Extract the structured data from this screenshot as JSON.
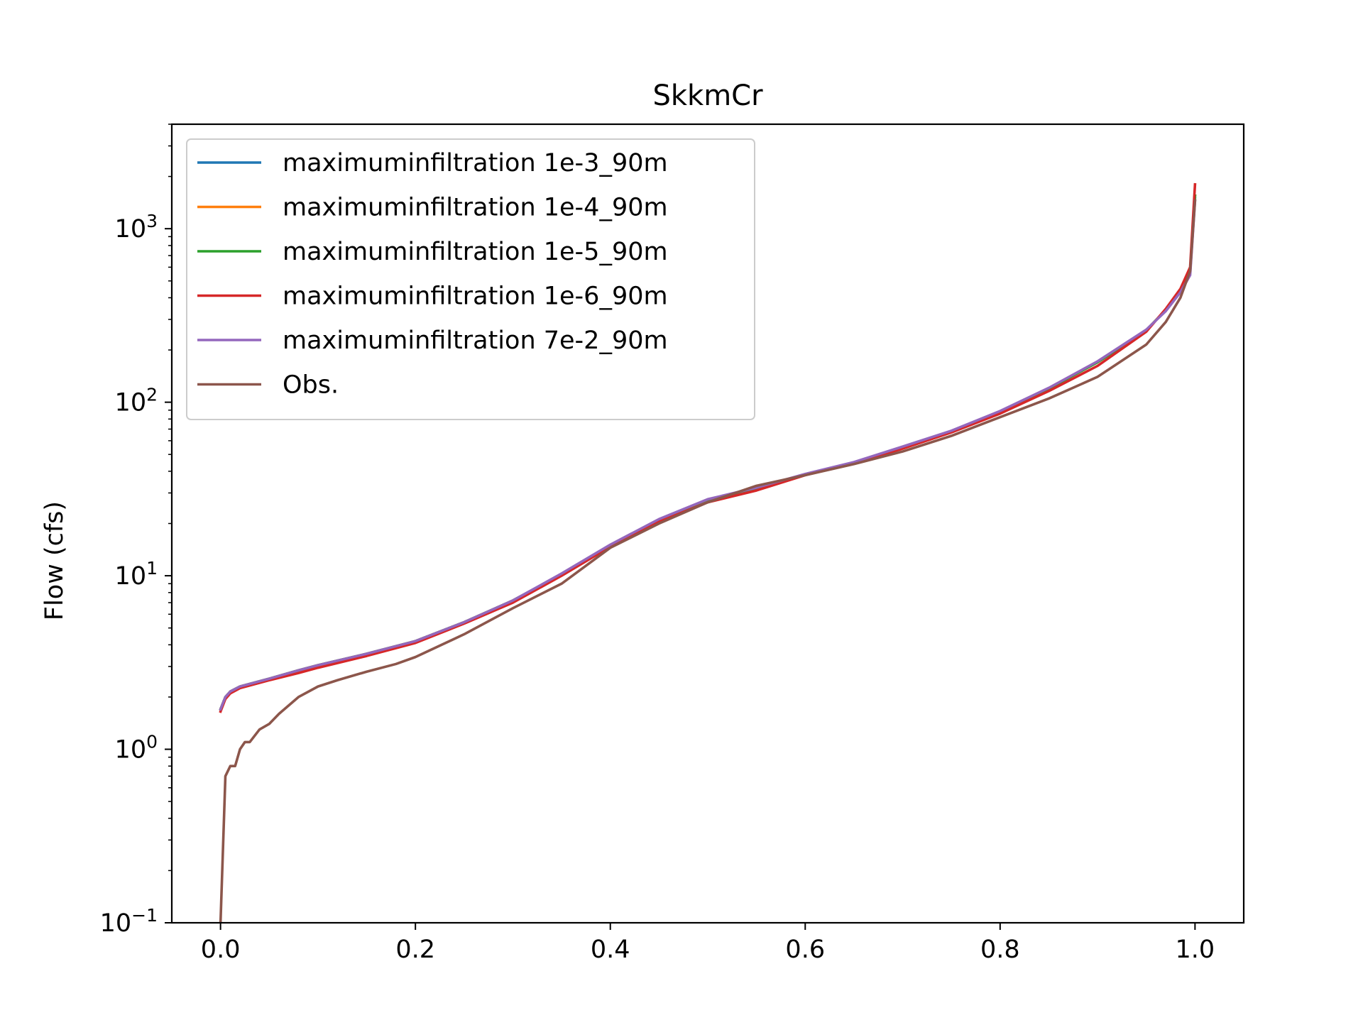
{
  "chart_data": {
    "type": "line",
    "title": "SkkmCr",
    "xlabel": "",
    "ylabel": "Flow (cfs)",
    "xlim": [
      -0.05,
      1.05
    ],
    "ylim": [
      0.1,
      4000
    ],
    "yscale": "log",
    "grid": false,
    "legend_position": "upper-left",
    "x_ticks": [
      {
        "value": 0.0,
        "label": "0.0"
      },
      {
        "value": 0.2,
        "label": "0.2"
      },
      {
        "value": 0.4,
        "label": "0.4"
      },
      {
        "value": 0.6,
        "label": "0.6"
      },
      {
        "value": 0.8,
        "label": "0.8"
      },
      {
        "value": 1.0,
        "label": "1.0"
      }
    ],
    "y_ticks": [
      {
        "value": 0.1,
        "base": "10",
        "exp": "−1"
      },
      {
        "value": 1,
        "base": "10",
        "exp": "0"
      },
      {
        "value": 10,
        "base": "10",
        "exp": "1"
      },
      {
        "value": 100,
        "base": "10",
        "exp": "2"
      },
      {
        "value": 1000,
        "base": "10",
        "exp": "3"
      }
    ],
    "series": [
      {
        "name": "maximuminfiltration 1e-3_90m",
        "color": "#1f77b4",
        "x": [
          0.0,
          0.005,
          0.01,
          0.02,
          0.05,
          0.08,
          0.1,
          0.15,
          0.2,
          0.25,
          0.3,
          0.35,
          0.4,
          0.45,
          0.5,
          0.55,
          0.6,
          0.65,
          0.7,
          0.75,
          0.8,
          0.85,
          0.9,
          0.95,
          0.97,
          0.985,
          0.995,
          1.0
        ],
        "y": [
          1.7,
          2.0,
          2.15,
          2.3,
          2.55,
          2.85,
          3.05,
          3.55,
          4.2,
          5.4,
          7.2,
          10.2,
          15.0,
          21.0,
          27.5,
          32.0,
          38.5,
          45.0,
          55.0,
          68.0,
          88.0,
          120.0,
          170.0,
          260.0,
          340.0,
          440.0,
          560.0,
          1500.0
        ]
      },
      {
        "name": "maximuminfiltration 1e-4_90m",
        "color": "#ff7f0e",
        "x": [
          0.0,
          0.005,
          0.01,
          0.02,
          0.05,
          0.08,
          0.1,
          0.15,
          0.2,
          0.25,
          0.3,
          0.35,
          0.4,
          0.45,
          0.5,
          0.55,
          0.6,
          0.65,
          0.7,
          0.75,
          0.8,
          0.85,
          0.9,
          0.95,
          0.97,
          0.985,
          0.995,
          1.0
        ],
        "y": [
          1.7,
          2.0,
          2.15,
          2.3,
          2.55,
          2.85,
          3.05,
          3.55,
          4.2,
          5.4,
          7.2,
          10.2,
          15.0,
          21.0,
          27.5,
          32.0,
          38.5,
          45.0,
          55.0,
          68.0,
          88.0,
          120.0,
          170.0,
          260.0,
          340.0,
          440.0,
          570.0,
          1550.0
        ]
      },
      {
        "name": "maximuminfiltration 1e-5_90m",
        "color": "#2ca02c",
        "x": [
          0.0,
          0.005,
          0.01,
          0.02,
          0.05,
          0.08,
          0.1,
          0.15,
          0.2,
          0.25,
          0.3,
          0.35,
          0.4,
          0.45,
          0.5,
          0.55,
          0.6,
          0.65,
          0.7,
          0.75,
          0.8,
          0.85,
          0.9,
          0.95,
          0.97,
          0.985,
          0.995,
          1.0
        ],
        "y": [
          1.7,
          2.0,
          2.15,
          2.3,
          2.55,
          2.85,
          3.05,
          3.55,
          4.2,
          5.4,
          7.2,
          10.2,
          15.0,
          21.0,
          27.5,
          32.0,
          38.5,
          45.0,
          55.0,
          68.0,
          88.0,
          120.0,
          170.0,
          260.0,
          340.0,
          440.0,
          570.0,
          1550.0
        ]
      },
      {
        "name": "maximuminfiltration 1e-6_90m",
        "color": "#d62728",
        "x": [
          0.0,
          0.005,
          0.01,
          0.02,
          0.05,
          0.08,
          0.1,
          0.15,
          0.2,
          0.25,
          0.3,
          0.35,
          0.4,
          0.45,
          0.5,
          0.55,
          0.6,
          0.65,
          0.7,
          0.75,
          0.8,
          0.85,
          0.9,
          0.95,
          0.97,
          0.985,
          0.995,
          1.0
        ],
        "y": [
          1.65,
          1.95,
          2.1,
          2.25,
          2.5,
          2.75,
          2.95,
          3.45,
          4.1,
          5.3,
          7.0,
          10.0,
          14.7,
          20.5,
          26.5,
          31.0,
          38.0,
          44.5,
          54.0,
          67.0,
          86.0,
          116.0,
          162.0,
          255.0,
          345.0,
          450.0,
          600.0,
          1800.0
        ]
      },
      {
        "name": "maximuminfiltration 7e-2_90m",
        "color": "#9467bd",
        "x": [
          0.0,
          0.005,
          0.01,
          0.02,
          0.05,
          0.08,
          0.1,
          0.15,
          0.2,
          0.25,
          0.3,
          0.35,
          0.4,
          0.45,
          0.5,
          0.55,
          0.6,
          0.65,
          0.7,
          0.75,
          0.8,
          0.85,
          0.9,
          0.95,
          0.97,
          0.985,
          0.995,
          1.0
        ],
        "y": [
          1.7,
          2.0,
          2.15,
          2.3,
          2.55,
          2.85,
          3.05,
          3.55,
          4.2,
          5.4,
          7.2,
          10.3,
          15.1,
          21.2,
          27.6,
          32.2,
          38.6,
          45.2,
          55.5,
          68.5,
          89.0,
          121.0,
          172.0,
          262.0,
          335.0,
          430.0,
          540.0,
          1450.0
        ]
      },
      {
        "name": "Obs.",
        "color": "#8c564b",
        "x": [
          0.0,
          0.005,
          0.01,
          0.015,
          0.02,
          0.025,
          0.03,
          0.04,
          0.05,
          0.06,
          0.08,
          0.1,
          0.12,
          0.15,
          0.18,
          0.2,
          0.25,
          0.3,
          0.35,
          0.4,
          0.45,
          0.5,
          0.55,
          0.6,
          0.65,
          0.7,
          0.75,
          0.8,
          0.85,
          0.9,
          0.95,
          0.97,
          0.985,
          0.995,
          1.0
        ],
        "y": [
          0.1,
          0.7,
          0.8,
          0.8,
          1.0,
          1.1,
          1.1,
          1.3,
          1.4,
          1.6,
          2.0,
          2.3,
          2.5,
          2.8,
          3.1,
          3.4,
          4.6,
          6.5,
          9.0,
          14.5,
          20.0,
          26.5,
          33.0,
          38.0,
          44.0,
          52.0,
          64.0,
          82.0,
          105.0,
          140.0,
          215.0,
          290.0,
          400.0,
          570.0,
          1450.0
        ]
      }
    ]
  }
}
